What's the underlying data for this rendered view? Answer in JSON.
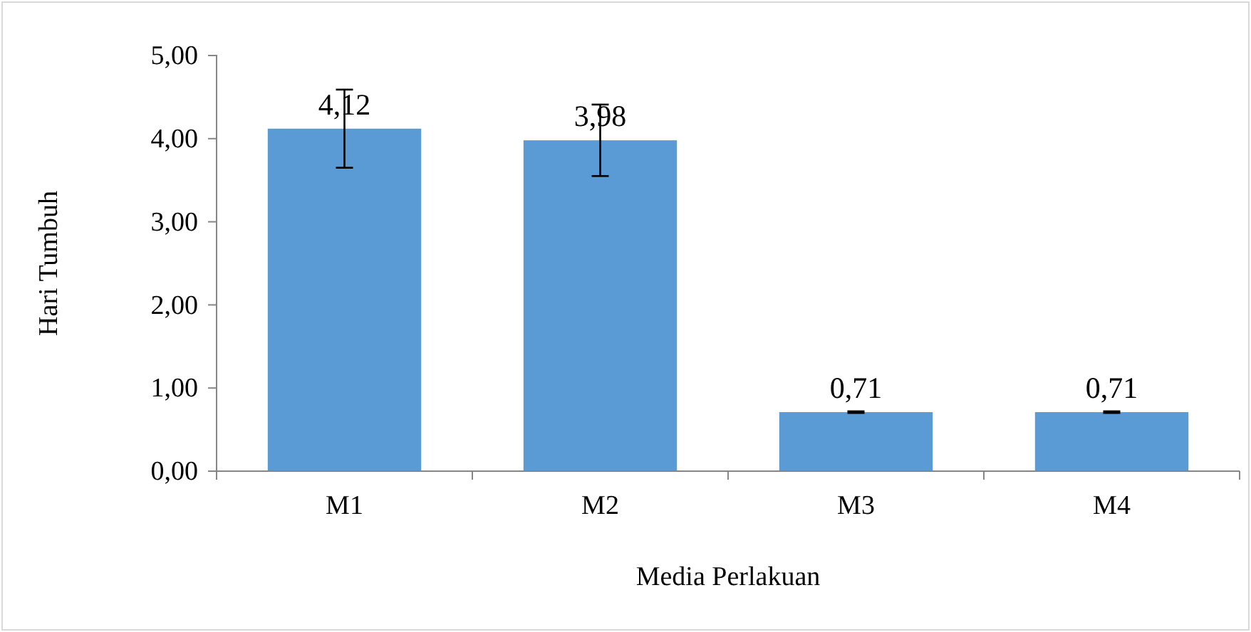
{
  "chart_data": {
    "type": "bar",
    "xlabel": "Media Perlakuan",
    "ylabel": "Hari Tumbuh",
    "categories": [
      "M1",
      "M2",
      "M3",
      "M4"
    ],
    "values": [
      4.12,
      3.98,
      0.71,
      0.71
    ],
    "value_labels": [
      "4,12",
      "3,98",
      "0,71",
      "0,71"
    ],
    "errors": [
      0.47,
      0.43,
      0.01,
      0.01
    ],
    "color": "#5b9bd5",
    "ylim": [
      0,
      5
    ],
    "yticks": [
      {
        "value": 0,
        "label": "0,00"
      },
      {
        "value": 1,
        "label": "1,00"
      },
      {
        "value": 2,
        "label": "2,00"
      },
      {
        "value": 3,
        "label": "3,00"
      },
      {
        "value": 4,
        "label": "4,00"
      },
      {
        "value": 5,
        "label": "5,00"
      }
    ],
    "grid": false,
    "legend": false
  }
}
